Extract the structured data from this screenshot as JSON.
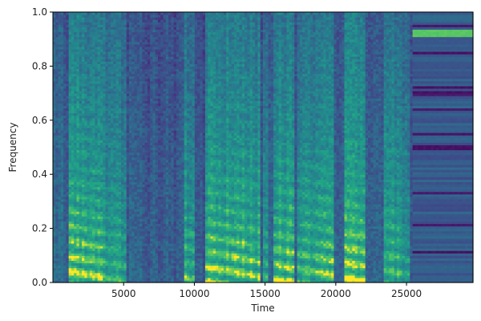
{
  "chart_data": {
    "type": "heatmap",
    "title": "",
    "xlabel": "Time",
    "ylabel": "Frequency",
    "xlim": [
      0,
      29700
    ],
    "ylim": [
      0.0,
      1.0
    ],
    "x_ticks": [
      5000,
      10000,
      15000,
      20000,
      25000
    ],
    "x_tick_labels": [
      "5000",
      "10000",
      "15000",
      "20000",
      "25000"
    ],
    "y_ticks": [
      0.0,
      0.2,
      0.4,
      0.6,
      0.8,
      1.0
    ],
    "y_tick_labels": [
      "0.0",
      "0.2",
      "0.4",
      "0.6",
      "0.8",
      "1.0"
    ],
    "colormap": "viridis",
    "speech_segments": [
      {
        "start": 1200,
        "end": 3600,
        "strength": 0.95
      },
      {
        "start": 3600,
        "end": 5200,
        "strength": 0.55
      },
      {
        "start": 9300,
        "end": 10000,
        "strength": 0.75
      },
      {
        "start": 10700,
        "end": 13500,
        "strength": 0.9
      },
      {
        "start": 13500,
        "end": 14700,
        "strength": 0.8
      },
      {
        "start": 14800,
        "end": 15300,
        "strength": 0.6
      },
      {
        "start": 15600,
        "end": 17000,
        "strength": 0.95
      },
      {
        "start": 17300,
        "end": 18300,
        "strength": 0.8
      },
      {
        "start": 18300,
        "end": 19800,
        "strength": 0.85
      },
      {
        "start": 20600,
        "end": 22100,
        "strength": 0.9
      },
      {
        "start": 23400,
        "end": 24500,
        "strength": 0.7
      },
      {
        "start": 24500,
        "end": 25300,
        "strength": 0.55
      }
    ],
    "noise_region": {
      "start": 25500,
      "end": 29700,
      "bright_band": 0.92
    },
    "colors": {
      "low": "#440154",
      "mid": "#21918c",
      "high": "#fde725"
    }
  }
}
